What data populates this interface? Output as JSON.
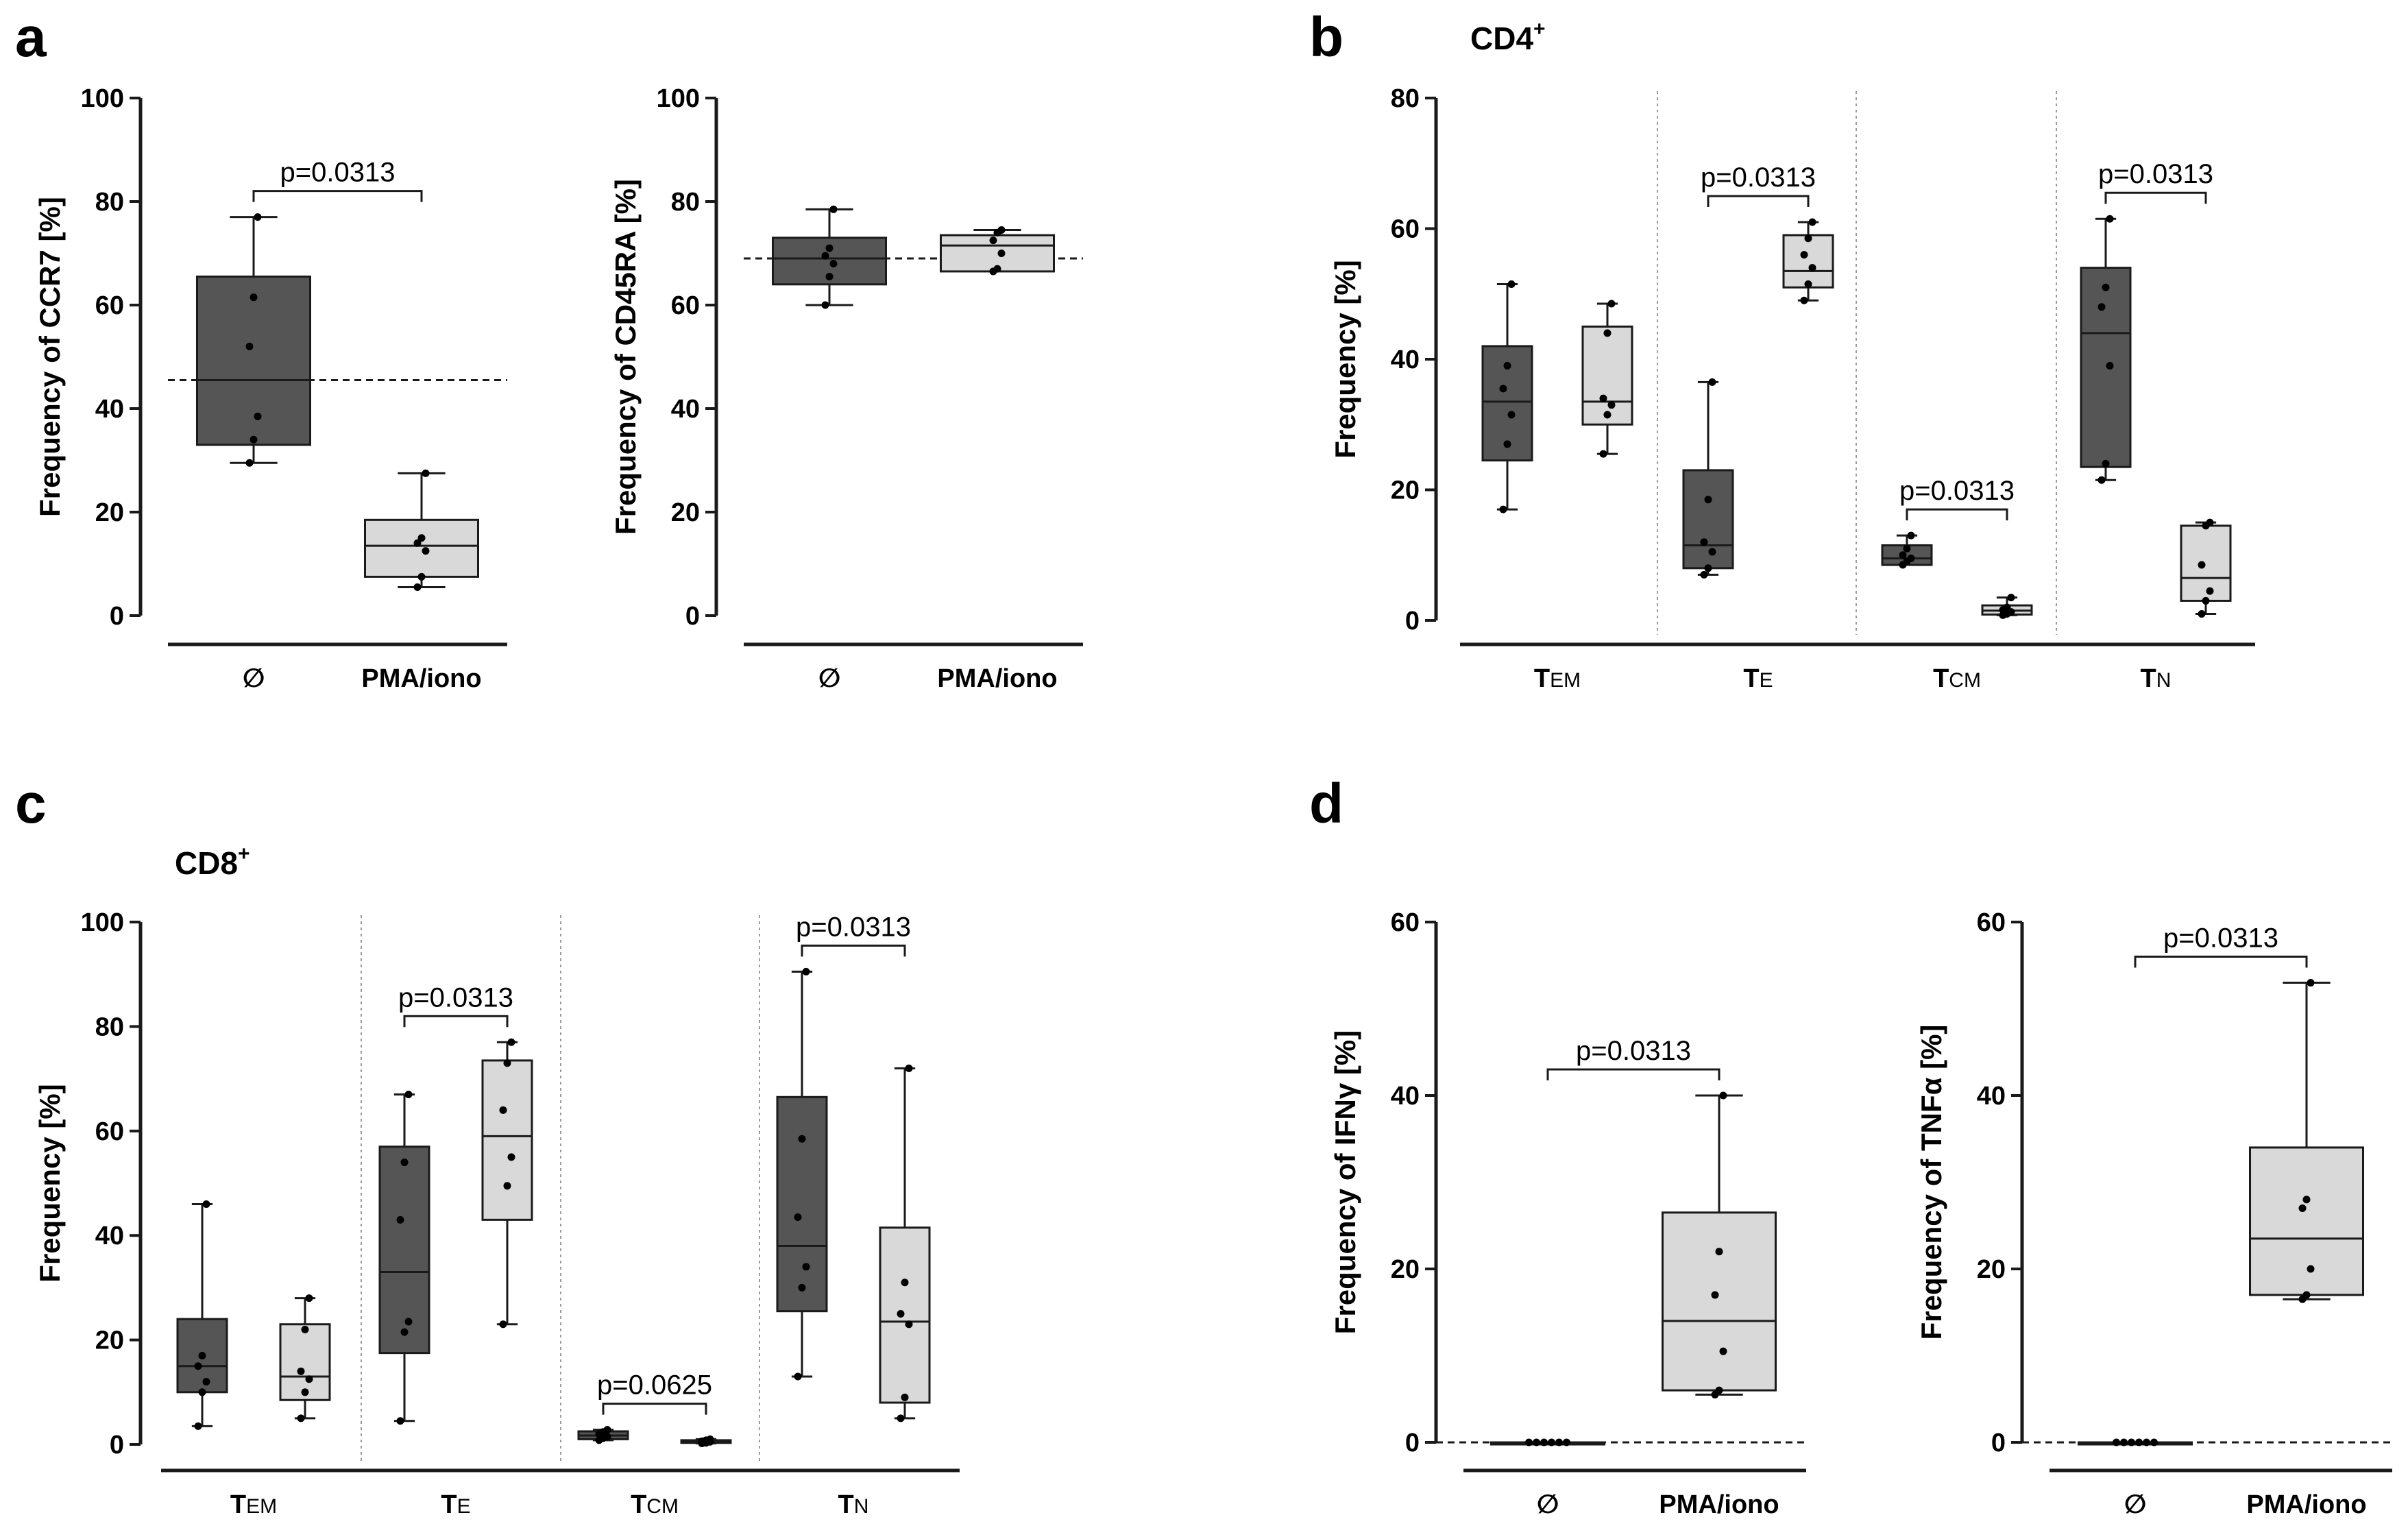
{
  "colors": {
    "unstim": "#555555",
    "stim": "#d9d9d9",
    "stroke": "#1a1a1a"
  },
  "panels": [
    {
      "letter": "a"
    },
    {
      "letter": "b",
      "title": "CD4",
      "title_sup": "+"
    },
    {
      "letter": "c",
      "title": "CD8",
      "title_sup": "+"
    },
    {
      "letter": "d"
    }
  ],
  "chart_data": [
    {
      "panel": "a",
      "type": "box",
      "ylabel": "Frequency of CCR7 [%]",
      "ylim": [
        0,
        100
      ],
      "yticks": [
        0,
        20,
        40,
        60,
        80,
        100
      ],
      "reference_line": 45.5,
      "groups": [
        {
          "category": "∅",
          "condition": "unstimulated",
          "box": {
            "whisker_low": 29.5,
            "q1": 33.0,
            "median": 45.5,
            "q3": 65.5,
            "whisker_high": 77.0
          },
          "points": [
            29.5,
            34.0,
            38.5,
            52.0,
            61.5,
            77.0
          ]
        },
        {
          "category": "PMA/iono",
          "condition": "stimulated",
          "box": {
            "whisker_low": 5.5,
            "q1": 7.5,
            "median": 13.5,
            "q3": 18.5,
            "whisker_high": 27.5
          },
          "points": [
            5.5,
            7.5,
            12.5,
            14.0,
            15.0,
            27.5
          ]
        }
      ],
      "brackets": [
        {
          "from": 0,
          "to": 1,
          "label": "p=0.0313"
        }
      ]
    },
    {
      "panel": "a",
      "type": "box",
      "ylabel": "Frequency of CD45RA [%]",
      "ylim": [
        0,
        100
      ],
      "yticks": [
        0,
        20,
        40,
        60,
        80,
        100
      ],
      "reference_line": 69.0,
      "groups": [
        {
          "category": "∅",
          "condition": "unstimulated",
          "box": {
            "whisker_low": 60.0,
            "q1": 64.0,
            "median": 69.0,
            "q3": 73.0,
            "whisker_high": 78.5
          },
          "points": [
            60.0,
            65.5,
            68.0,
            69.5,
            71.0,
            78.5
          ]
        },
        {
          "category": "PMA/iono",
          "condition": "stimulated",
          "box": {
            "whisker_low": 66.5,
            "q1": 66.5,
            "median": 71.5,
            "q3": 73.5,
            "whisker_high": 74.5
          },
          "points": [
            66.5,
            67.0,
            70.0,
            72.5,
            74.0,
            74.5
          ]
        }
      ],
      "brackets": []
    },
    {
      "panel": "b",
      "type": "box",
      "ylabel": "Frequency [%]",
      "ylim": [
        0,
        80
      ],
      "yticks": [
        0,
        20,
        40,
        60,
        80
      ],
      "categories": [
        {
          "main": "T",
          "sub": "EM"
        },
        {
          "main": "T",
          "sub": "E"
        },
        {
          "main": "T",
          "sub": "CM"
        },
        {
          "main": "T",
          "sub": "N"
        }
      ],
      "groups": [
        {
          "category_index": 0,
          "condition": "unstimulated",
          "box": {
            "whisker_low": 17.0,
            "q1": 24.5,
            "median": 33.5,
            "q3": 42.0,
            "whisker_high": 51.5
          },
          "points": [
            17.0,
            27.0,
            31.5,
            35.5,
            39.0,
            51.5
          ]
        },
        {
          "category_index": 0,
          "condition": "stimulated",
          "box": {
            "whisker_low": 25.5,
            "q1": 30.0,
            "median": 33.5,
            "q3": 45.0,
            "whisker_high": 48.5
          },
          "points": [
            25.5,
            31.5,
            33.0,
            34.0,
            44.0,
            48.5
          ]
        },
        {
          "category_index": 1,
          "condition": "unstimulated",
          "box": {
            "whisker_low": 7.0,
            "q1": 8.0,
            "median": 11.5,
            "q3": 23.0,
            "whisker_high": 36.5
          },
          "points": [
            7.0,
            8.0,
            10.5,
            12.0,
            18.5,
            36.5
          ]
        },
        {
          "category_index": 1,
          "condition": "stimulated",
          "box": {
            "whisker_low": 49.0,
            "q1": 51.0,
            "median": 53.5,
            "q3": 59.0,
            "whisker_high": 61.0
          },
          "points": [
            49.0,
            51.5,
            54.0,
            56.0,
            58.5,
            61.0
          ]
        },
        {
          "category_index": 2,
          "condition": "unstimulated",
          "box": {
            "whisker_low": 8.5,
            "q1": 8.5,
            "median": 9.5,
            "q3": 11.5,
            "whisker_high": 13.0
          },
          "points": [
            8.5,
            9.0,
            9.5,
            10.0,
            11.0,
            13.0
          ]
        },
        {
          "category_index": 2,
          "condition": "stimulated",
          "box": {
            "whisker_low": 0.8,
            "q1": 0.9,
            "median": 1.5,
            "q3": 2.3,
            "whisker_high": 3.5
          },
          "points": [
            0.8,
            1.0,
            1.3,
            1.6,
            2.0,
            3.5
          ]
        },
        {
          "category_index": 3,
          "condition": "unstimulated",
          "box": {
            "whisker_low": 21.5,
            "q1": 23.5,
            "median": 44.0,
            "q3": 54.0,
            "whisker_high": 61.5
          },
          "points": [
            21.5,
            24.0,
            39.0,
            48.0,
            51.0,
            61.5
          ]
        },
        {
          "category_index": 3,
          "condition": "stimulated",
          "box": {
            "whisker_low": 1.0,
            "q1": 3.0,
            "median": 6.5,
            "q3": 14.5,
            "whisker_high": 15.0
          },
          "points": [
            1.0,
            3.0,
            4.5,
            8.5,
            14.5,
            15.0
          ]
        }
      ],
      "brackets": [
        {
          "category_index": 1,
          "label": "p=0.0313"
        },
        {
          "category_index": 2,
          "label": "p=0.0313"
        },
        {
          "category_index": 3,
          "label": "p=0.0313"
        }
      ]
    },
    {
      "panel": "c",
      "type": "box",
      "ylabel": "Frequency [%]",
      "ylim": [
        0,
        100
      ],
      "yticks": [
        0,
        20,
        40,
        60,
        80,
        100
      ],
      "categories": [
        {
          "main": "T",
          "sub": "EM"
        },
        {
          "main": "T",
          "sub": "E"
        },
        {
          "main": "T",
          "sub": "CM"
        },
        {
          "main": "T",
          "sub": "N"
        }
      ],
      "groups": [
        {
          "category_index": 0,
          "condition": "unstimulated",
          "box": {
            "whisker_low": 3.5,
            "q1": 10.0,
            "median": 15.0,
            "q3": 24.0,
            "whisker_high": 46.0
          },
          "points": [
            3.5,
            10.0,
            12.0,
            15.0,
            17.0,
            46.0
          ]
        },
        {
          "category_index": 0,
          "condition": "stimulated",
          "box": {
            "whisker_low": 5.0,
            "q1": 8.5,
            "median": 13.0,
            "q3": 23.0,
            "whisker_high": 28.0
          },
          "points": [
            5.0,
            10.0,
            12.5,
            14.0,
            22.0,
            28.0
          ]
        },
        {
          "category_index": 1,
          "condition": "unstimulated",
          "box": {
            "whisker_low": 4.5,
            "q1": 17.5,
            "median": 33.0,
            "q3": 57.0,
            "whisker_high": 67.0
          },
          "points": [
            4.5,
            21.5,
            23.5,
            43.0,
            54.0,
            67.0
          ]
        },
        {
          "category_index": 1,
          "condition": "stimulated",
          "box": {
            "whisker_low": 23.0,
            "q1": 43.0,
            "median": 59.0,
            "q3": 73.5,
            "whisker_high": 77.0
          },
          "points": [
            23.0,
            49.5,
            55.0,
            64.0,
            73.0,
            77.0
          ]
        },
        {
          "category_index": 2,
          "condition": "unstimulated",
          "box": {
            "whisker_low": 0.8,
            "q1": 1.0,
            "median": 1.7,
            "q3": 2.5,
            "whisker_high": 2.8
          },
          "points": [
            0.8,
            1.2,
            1.5,
            2.0,
            2.4,
            2.8
          ]
        },
        {
          "category_index": 2,
          "condition": "stimulated",
          "box": {
            "whisker_low": 0.2,
            "q1": 0.3,
            "median": 0.5,
            "q3": 0.8,
            "whisker_high": 1.0
          },
          "points": [
            0.2,
            0.3,
            0.5,
            0.6,
            0.8,
            1.0
          ]
        },
        {
          "category_index": 3,
          "condition": "unstimulated",
          "box": {
            "whisker_low": 13.0,
            "q1": 25.5,
            "median": 38.0,
            "q3": 66.5,
            "whisker_high": 90.5
          },
          "points": [
            13.0,
            30.0,
            34.0,
            43.5,
            58.5,
            90.5
          ]
        },
        {
          "category_index": 3,
          "condition": "stimulated",
          "box": {
            "whisker_low": 5.0,
            "q1": 8.0,
            "median": 23.5,
            "q3": 41.5,
            "whisker_high": 72.0
          },
          "points": [
            5.0,
            9.0,
            23.0,
            25.0,
            31.0,
            72.0
          ]
        }
      ],
      "brackets": [
        {
          "category_index": 1,
          "label": "p=0.0313"
        },
        {
          "category_index": 2,
          "label": "p=0.0625"
        },
        {
          "category_index": 3,
          "label": "p=0.0313"
        }
      ]
    },
    {
      "panel": "d",
      "type": "box",
      "ylabel": "Frequency of IFNγ [%]",
      "ylim": [
        0,
        60
      ],
      "yticks": [
        0,
        20,
        40,
        60
      ],
      "reference_line": 0,
      "groups": [
        {
          "category": "∅",
          "condition": "unstimulated",
          "box": {
            "whisker_low": 0,
            "q1": 0,
            "median": 0,
            "q3": 0,
            "whisker_high": 0
          },
          "points": [
            0,
            0,
            0,
            0,
            0,
            0
          ]
        },
        {
          "category": "PMA/iono",
          "condition": "stimulated",
          "box": {
            "whisker_low": 5.5,
            "q1": 6.0,
            "median": 14.0,
            "q3": 26.5,
            "whisker_high": 40.0
          },
          "points": [
            5.5,
            6.0,
            10.5,
            17.0,
            22.0,
            40.0
          ]
        }
      ],
      "brackets": [
        {
          "from": 0,
          "to": 1,
          "label": "p=0.0313"
        }
      ]
    },
    {
      "panel": "d",
      "type": "box",
      "ylabel": "Frequency of TNFα [%]",
      "ylim": [
        0,
        60
      ],
      "yticks": [
        0,
        20,
        40,
        60
      ],
      "reference_line": 0,
      "groups": [
        {
          "category": "∅",
          "condition": "unstimulated",
          "box": {
            "whisker_low": 0,
            "q1": 0,
            "median": 0,
            "q3": 0,
            "whisker_high": 0
          },
          "points": [
            0,
            0,
            0,
            0,
            0,
            0
          ]
        },
        {
          "category": "PMA/iono",
          "condition": "stimulated",
          "box": {
            "whisker_low": 16.5,
            "q1": 17.0,
            "median": 23.5,
            "q3": 34.0,
            "whisker_high": 53.0
          },
          "points": [
            16.5,
            17.0,
            20.0,
            27.0,
            28.0,
            53.0
          ]
        }
      ],
      "brackets": [
        {
          "from": 0,
          "to": 1,
          "label": "p=0.0313"
        }
      ]
    }
  ]
}
